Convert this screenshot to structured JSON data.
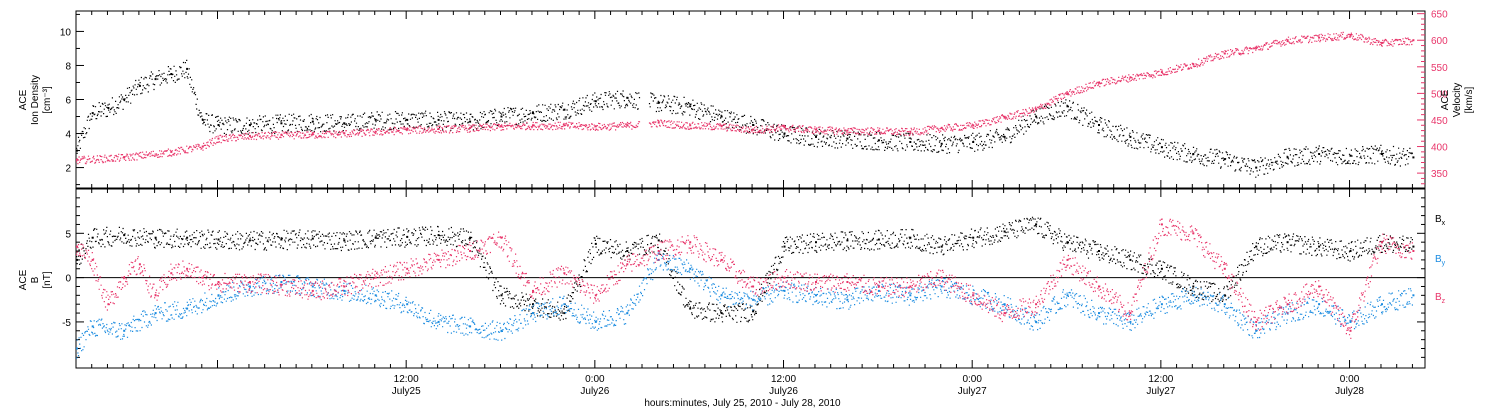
{
  "chart_data": [
    {
      "type": "scatter",
      "panel": "top",
      "xlabel": "hours:minutes, July 25, 2010 - July 28, 2010",
      "x_ticks": [
        {
          "hours": 12,
          "label": "12:00",
          "sublabel": "July25"
        },
        {
          "hours": 24,
          "label": "0:00",
          "sublabel": "July26"
        },
        {
          "hours": 36,
          "label": "12:00",
          "sublabel": "July26"
        },
        {
          "hours": 48,
          "label": "0:00",
          "sublabel": "July27"
        },
        {
          "hours": 60,
          "label": "12:00",
          "sublabel": "July27"
        },
        {
          "hours": 72,
          "label": "0:00",
          "sublabel": "July28"
        }
      ],
      "xlim_hours": [
        -9,
        76.8
      ],
      "left_axis": {
        "label_lines": [
          "ACE",
          "Ion Density",
          "[cm⁻³]"
        ],
        "ylim": [
          0.8,
          11.2
        ],
        "ticks": [
          2,
          4,
          6,
          8,
          10
        ],
        "color": "#000000"
      },
      "right_axis": {
        "label_lines": [
          "ACE",
          "Velocity",
          "[km/s]"
        ],
        "ylim": [
          322,
          655
        ],
        "ticks": [
          350,
          400,
          450,
          500,
          550,
          600,
          650
        ],
        "color": "#e8356a"
      },
      "series": [
        {
          "axis": "left",
          "color": "#000000",
          "points": [
            [
              -9,
              3.0
            ],
            [
              -8,
              5.2
            ],
            [
              -7,
              5.5
            ],
            [
              -6,
              6.0
            ],
            [
              -5,
              6.8
            ],
            [
              -4,
              7.2
            ],
            [
              -3,
              7.5
            ],
            [
              -2,
              7.8
            ],
            [
              -1,
              4.8
            ],
            [
              0,
              4.5
            ],
            [
              2,
              4.5
            ],
            [
              4,
              4.6
            ],
            [
              6,
              4.7
            ],
            [
              8,
              4.6
            ],
            [
              10,
              4.8
            ],
            [
              12,
              4.8
            ],
            [
              14,
              4.8
            ],
            [
              16,
              4.7
            ],
            [
              18,
              5.0
            ],
            [
              20,
              5.2
            ],
            [
              22,
              5.4
            ],
            [
              24,
              5.9
            ],
            [
              26,
              6.1
            ],
            [
              28,
              5.8
            ],
            [
              30,
              5.6
            ],
            [
              32,
              5.0
            ],
            [
              34,
              4.5
            ],
            [
              36,
              4.0
            ],
            [
              38,
              3.8
            ],
            [
              40,
              3.7
            ],
            [
              42,
              3.6
            ],
            [
              44,
              3.5
            ],
            [
              46,
              3.4
            ],
            [
              48,
              3.5
            ],
            [
              50,
              3.8
            ],
            [
              52,
              5.0
            ],
            [
              54,
              5.6
            ],
            [
              56,
              4.5
            ],
            [
              58,
              3.8
            ],
            [
              60,
              3.2
            ],
            [
              62,
              2.8
            ],
            [
              64,
              2.5
            ],
            [
              66,
              2.0
            ],
            [
              68,
              2.6
            ],
            [
              70,
              2.8
            ],
            [
              72,
              2.7
            ],
            [
              74,
              2.8
            ],
            [
              76,
              2.6
            ]
          ]
        },
        {
          "axis": "right",
          "color": "#e8356a",
          "points": [
            [
              -9,
              375
            ],
            [
              -6,
              380
            ],
            [
              -3,
              390
            ],
            [
              -1,
              400
            ],
            [
              0,
              415
            ],
            [
              2,
              420
            ],
            [
              4,
              422
            ],
            [
              6,
              423
            ],
            [
              8,
              425
            ],
            [
              10,
              428
            ],
            [
              12,
              432
            ],
            [
              14,
              433
            ],
            [
              16,
              435
            ],
            [
              18,
              438
            ],
            [
              20,
              440
            ],
            [
              22,
              440
            ],
            [
              24,
              438
            ],
            [
              26,
              440
            ],
            [
              28,
              445
            ],
            [
              30,
              440
            ],
            [
              32,
              438
            ],
            [
              34,
              432
            ],
            [
              36,
              436
            ],
            [
              38,
              432
            ],
            [
              40,
              430
            ],
            [
              42,
              430
            ],
            [
              44,
              428
            ],
            [
              46,
              435
            ],
            [
              48,
              440
            ],
            [
              50,
              455
            ],
            [
              52,
              470
            ],
            [
              54,
              500
            ],
            [
              56,
              520
            ],
            [
              58,
              530
            ],
            [
              60,
              540
            ],
            [
              62,
              555
            ],
            [
              64,
              575
            ],
            [
              66,
              585
            ],
            [
              68,
              600
            ],
            [
              70,
              605
            ],
            [
              72,
              610
            ],
            [
              74,
              595
            ],
            [
              76,
              600
            ]
          ]
        }
      ]
    },
    {
      "type": "scatter",
      "panel": "bottom",
      "xlim_hours": [
        -9,
        76.8
      ],
      "left_axis": {
        "label_lines": [
          "ACE",
          "B",
          "[nT]"
        ],
        "ylim": [
          -10.2,
          10.0
        ],
        "ticks": [
          -5,
          0,
          5
        ],
        "zero_line": true
      },
      "legend": [
        {
          "label": "B",
          "subscript": "x",
          "color": "#000000"
        },
        {
          "label": "B",
          "subscript": "y",
          "color": "#1a8be0"
        },
        {
          "label": "B",
          "subscript": "z",
          "color": "#e8356a"
        }
      ],
      "series": [
        {
          "name": "Bx",
          "color": "#000000",
          "points": [
            [
              -9,
              2
            ],
            [
              -8,
              4.5
            ],
            [
              -6,
              4.8
            ],
            [
              -4,
              4.5
            ],
            [
              -2,
              4.5
            ],
            [
              0,
              4.3
            ],
            [
              2,
              4.2
            ],
            [
              4,
              4.3
            ],
            [
              6,
              4.4
            ],
            [
              8,
              4.2
            ],
            [
              10,
              4.5
            ],
            [
              12,
              4.6
            ],
            [
              14,
              4.8
            ],
            [
              16,
              4.5
            ],
            [
              18,
              -2
            ],
            [
              20,
              -3
            ],
            [
              22,
              -4
            ],
            [
              24,
              3.8
            ],
            [
              26,
              3.0
            ],
            [
              28,
              4.2
            ],
            [
              30,
              -3.5
            ],
            [
              32,
              -4
            ],
            [
              34,
              -3.8
            ],
            [
              36,
              3.5
            ],
            [
              38,
              4.0
            ],
            [
              40,
              4.2
            ],
            [
              42,
              4.3
            ],
            [
              44,
              4.5
            ],
            [
              46,
              3.5
            ],
            [
              48,
              4.5
            ],
            [
              50,
              5.2
            ],
            [
              52,
              6.0
            ],
            [
              54,
              4.0
            ],
            [
              56,
              3.0
            ],
            [
              58,
              2.0
            ],
            [
              60,
              1.0
            ],
            [
              62,
              -1.0
            ],
            [
              64,
              -2.0
            ],
            [
              66,
              3.5
            ],
            [
              68,
              4.0
            ],
            [
              70,
              3.5
            ],
            [
              72,
              3.0
            ],
            [
              74,
              4.0
            ],
            [
              76,
              3.5
            ]
          ]
        },
        {
          "name": "By",
          "color": "#1a8be0",
          "points": [
            [
              -9,
              -8
            ],
            [
              -8,
              -5.5
            ],
            [
              -6,
              -6
            ],
            [
              -4,
              -4
            ],
            [
              -2,
              -3.5
            ],
            [
              0,
              -2
            ],
            [
              2,
              -1
            ],
            [
              4,
              -0.5
            ],
            [
              6,
              -1
            ],
            [
              8,
              -1.5
            ],
            [
              10,
              -2
            ],
            [
              12,
              -3
            ],
            [
              14,
              -5
            ],
            [
              16,
              -5.5
            ],
            [
              18,
              -6
            ],
            [
              20,
              -4
            ],
            [
              22,
              -3
            ],
            [
              24,
              -5
            ],
            [
              26,
              -4
            ],
            [
              28,
              2
            ],
            [
              30,
              1
            ],
            [
              32,
              -2
            ],
            [
              34,
              -2.5
            ],
            [
              36,
              -1.5
            ],
            [
              38,
              -2
            ],
            [
              40,
              -2.5
            ],
            [
              42,
              -1.5
            ],
            [
              44,
              -2
            ],
            [
              46,
              -1
            ],
            [
              48,
              -2
            ],
            [
              50,
              -3
            ],
            [
              52,
              -5
            ],
            [
              54,
              -2
            ],
            [
              56,
              -4
            ],
            [
              58,
              -5
            ],
            [
              60,
              -3
            ],
            [
              62,
              -2
            ],
            [
              64,
              -3
            ],
            [
              66,
              -6
            ],
            [
              68,
              -4
            ],
            [
              70,
              -3
            ],
            [
              72,
              -5
            ],
            [
              74,
              -3
            ],
            [
              76,
              -2
            ]
          ]
        },
        {
          "name": "Bz",
          "color": "#e8356a",
          "points": [
            [
              -9,
              3.5
            ],
            [
              -8,
              2
            ],
            [
              -7,
              -3
            ],
            [
              -6,
              0
            ],
            [
              -5,
              1.5
            ],
            [
              -4,
              -2
            ],
            [
              -3,
              0.5
            ],
            [
              -2,
              1
            ],
            [
              -1,
              0
            ],
            [
              0,
              -0.5
            ],
            [
              2,
              -0.5
            ],
            [
              4,
              -0.8
            ],
            [
              6,
              -1.5
            ],
            [
              8,
              -1
            ],
            [
              10,
              0
            ],
            [
              12,
              1
            ],
            [
              14,
              2
            ],
            [
              16,
              3
            ],
            [
              18,
              4.5
            ],
            [
              20,
              -1.5
            ],
            [
              22,
              0.5
            ],
            [
              24,
              -2
            ],
            [
              26,
              1.5
            ],
            [
              28,
              3
            ],
            [
              30,
              4
            ],
            [
              32,
              2
            ],
            [
              34,
              -1
            ],
            [
              36,
              0
            ],
            [
              38,
              -0.5
            ],
            [
              40,
              -0.5
            ],
            [
              42,
              -1
            ],
            [
              44,
              -1
            ],
            [
              46,
              0
            ],
            [
              48,
              -2
            ],
            [
              50,
              -4
            ],
            [
              52,
              -3
            ],
            [
              54,
              2
            ],
            [
              56,
              -1
            ],
            [
              58,
              -4
            ],
            [
              60,
              6
            ],
            [
              62,
              5
            ],
            [
              64,
              1
            ],
            [
              66,
              -5
            ],
            [
              68,
              -3
            ],
            [
              70,
              -1
            ],
            [
              72,
              -6
            ],
            [
              74,
              4
            ],
            [
              76,
              3
            ]
          ]
        }
      ]
    }
  ]
}
